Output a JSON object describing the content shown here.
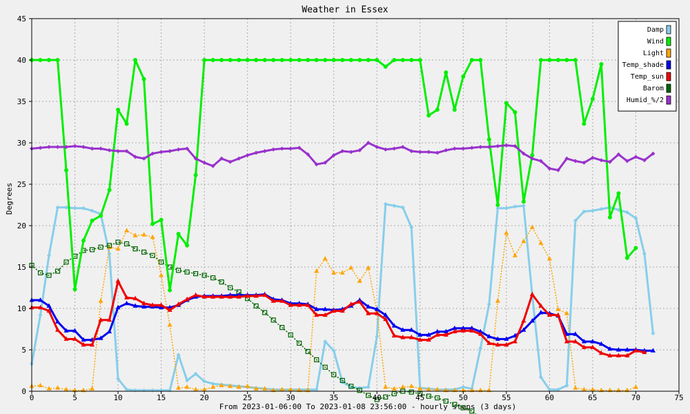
{
  "chart_data": {
    "type": "line",
    "title": "Weather in Essex",
    "xlabel": "From 2023-01-06:00 To 2023-01-08 23:56:00 - hourly steps (3 days)",
    "ylabel": "Degrees",
    "xlim": [
      0,
      75
    ],
    "ylim": [
      0,
      45
    ],
    "xticks": [
      0,
      5,
      10,
      15,
      20,
      25,
      30,
      35,
      40,
      45,
      50,
      55,
      60,
      65,
      70,
      75
    ],
    "yticks": [
      0,
      5,
      10,
      15,
      20,
      25,
      30,
      35,
      40,
      45
    ],
    "grid": true,
    "legend_position": "top-right",
    "series": [
      {
        "name": "Damp",
        "color": "#87ceeb",
        "marker": "diamond",
        "dash": "solid",
        "values": [
          3.3,
          9.2,
          16.4,
          22.2,
          22.2,
          22.1,
          22.1,
          21.8,
          21.4,
          16.6,
          1.5,
          0.2,
          0.1,
          0.1,
          0.1,
          0.1,
          0.1,
          4.4,
          1.3,
          2.1,
          1.2,
          0.9,
          0.8,
          0.7,
          0.6,
          0.5,
          0.4,
          0.3,
          0.2,
          0.2,
          0.2,
          0.2,
          0.2,
          0.2,
          6.0,
          4.9,
          1.1,
          0.5,
          0.4,
          0.5,
          6.6,
          22.6,
          22.4,
          22.2,
          19.8,
          0.4,
          0.3,
          0.2,
          0.2,
          0.2,
          0.5,
          0.3,
          5.2,
          10.5,
          22.1,
          22.1,
          22.3,
          22.4,
          11.6,
          1.7,
          0.2,
          0.2,
          0.7,
          20.6,
          21.7,
          21.8,
          22.0,
          22.2,
          21.9,
          21.6,
          20.9,
          16.6,
          7.0
        ]
      },
      {
        "name": "Wind",
        "color": "#00ee00",
        "marker": "circle",
        "dash": "solid",
        "values": [
          40,
          40,
          40,
          40,
          26.7,
          12.3,
          18.2,
          20.6,
          21.2,
          24.3,
          34,
          32.3,
          40,
          37.7,
          20.2,
          20.7,
          12.2,
          19,
          17.6,
          26.1,
          40,
          40,
          40,
          40,
          40,
          40,
          40,
          40,
          40,
          40,
          40,
          40,
          40,
          40,
          40,
          40,
          40,
          40,
          40,
          40,
          40,
          39.2,
          40,
          40,
          40,
          40,
          33.3,
          34,
          38.5,
          34,
          38,
          40,
          40,
          30.4,
          22.5,
          34.8,
          33.7,
          22.9,
          28.5,
          40,
          40,
          40,
          40,
          40,
          32.3,
          35.3,
          39.5,
          21,
          23.9,
          16.1,
          17.3
        ]
      },
      {
        "name": "Light",
        "color": "#ffa500",
        "marker": "triangle",
        "dash": "dotted",
        "values": [
          0.6,
          0.7,
          0.3,
          0.4,
          0.2,
          0.1,
          0.1,
          0.3,
          10.9,
          17.4,
          17.2,
          19.4,
          18.8,
          18.9,
          18.6,
          14,
          8,
          0.4,
          0.5,
          0.2,
          0.2,
          0.5,
          0.7,
          0.6,
          0.5,
          0.6,
          0.3,
          0.3,
          0.1,
          0.2,
          0.2,
          0.1,
          0.1,
          14.5,
          16,
          14.3,
          14.3,
          14.9,
          13.3,
          14.9,
          9.6,
          0.5,
          0.3,
          0.5,
          0.6,
          0.3,
          0.2,
          0.2,
          0.1,
          0.1,
          0.1,
          0.1,
          0.1,
          0.1,
          10.9,
          19.1,
          16.4,
          18.1,
          19.8,
          17.9,
          16,
          9.9,
          9.4,
          0.4,
          0.2,
          0.2,
          0.1,
          0.1,
          0.1,
          0.1,
          0.5
        ]
      },
      {
        "name": "Temp_shade",
        "color": "#0000ee",
        "marker": "triangle",
        "dash": "solid",
        "values": [
          11,
          11,
          10.3,
          8.4,
          7.3,
          7.3,
          6.2,
          6.2,
          6.4,
          7.2,
          10.1,
          10.6,
          10.3,
          10.2,
          10.2,
          10.1,
          10.1,
          10.4,
          11,
          11.4,
          11.5,
          11.5,
          11.5,
          11.6,
          11.6,
          11.6,
          11.6,
          11.7,
          11.1,
          11,
          10.6,
          10.6,
          10.5,
          9.9,
          9.9,
          9.8,
          9.9,
          10.3,
          11.0,
          10.2,
          9.9,
          9.2,
          7.9,
          7.4,
          7.4,
          6.8,
          6.8,
          7.2,
          7.2,
          7.6,
          7.6,
          7.6,
          7.2,
          6.6,
          6.3,
          6.3,
          6.7,
          7.4,
          8.5,
          9.5,
          9.4,
          9.1,
          6.9,
          6.9,
          6.0,
          6.0,
          5.7,
          5.1,
          5.0,
          5.0,
          5.0,
          4.9,
          4.9
        ]
      },
      {
        "name": "Temp_sun",
        "color": "#ee0000",
        "marker": "triangle",
        "dash": "solid",
        "values": [
          10.1,
          10.1,
          9.7,
          7.4,
          6.3,
          6.3,
          5.6,
          5.6,
          8.6,
          8.6,
          13.3,
          11.3,
          11.2,
          10.6,
          10.4,
          10.4,
          9.8,
          10.5,
          11.1,
          11.6,
          11.4,
          11.4,
          11.4,
          11.4,
          11.4,
          11.5,
          11.5,
          11.6,
          10.9,
          10.9,
          10.4,
          10.4,
          10.4,
          9.2,
          9.2,
          9.7,
          9.7,
          10.5,
          10.8,
          9.4,
          9.4,
          8.7,
          6.7,
          6.5,
          6.5,
          6.2,
          6.2,
          6.8,
          6.8,
          7.2,
          7.3,
          7.3,
          6.9,
          5.8,
          5.6,
          5.6,
          6.0,
          8.5,
          11.7,
          10.3,
          9.2,
          9.2,
          6.0,
          6.0,
          5.3,
          5.3,
          4.6,
          4.3,
          4.3,
          4.3,
          4.9,
          4.7
        ]
      },
      {
        "name": "Barom",
        "color": "#006400",
        "marker": "square",
        "dash": "dotted",
        "values": [
          15.2,
          14.3,
          14,
          14.5,
          15.6,
          16.3,
          17,
          17.1,
          17.4,
          17.6,
          18,
          17.8,
          17.2,
          16.8,
          16.4,
          15.6,
          15,
          14.6,
          14.4,
          14.2,
          14,
          13.7,
          13.2,
          12.5,
          12,
          11.2,
          10.3,
          9.5,
          8.6,
          7.7,
          6.8,
          5.8,
          4.8,
          3.8,
          2.9,
          2.0,
          1.3,
          0.6,
          0.1,
          -0.5,
          -1.0,
          -0.7,
          -0.3,
          0,
          -0.1,
          -0.3,
          -0.6,
          -0.8,
          -1.2,
          -1.6,
          -2.0,
          -2.4,
          -3.2
        ]
      },
      {
        "name": "Humid_%/2",
        "color": "#9932cc",
        "marker": "diamond",
        "dash": "solid",
        "values": [
          29.3,
          29.4,
          29.5,
          29.5,
          29.5,
          29.6,
          29.5,
          29.3,
          29.3,
          29.1,
          29,
          29,
          28.3,
          28.1,
          28.7,
          28.9,
          29,
          29.2,
          29.3,
          28.1,
          27.6,
          27.2,
          28.1,
          27.7,
          28.1,
          28.5,
          28.8,
          29,
          29.2,
          29.3,
          29.3,
          29.4,
          28.6,
          27.4,
          27.6,
          28.5,
          29,
          28.9,
          29.1,
          30,
          29.5,
          29.2,
          29.3,
          29.5,
          29,
          28.9,
          28.9,
          28.8,
          29.1,
          29.3,
          29.3,
          29.4,
          29.5,
          29.5,
          29.6,
          29.7,
          29.6,
          28.7,
          28.1,
          27.8,
          26.9,
          26.7,
          28.1,
          27.8,
          27.6,
          28.2,
          27.9,
          27.7,
          28.6,
          27.8,
          28.3,
          27.9,
          28.7
        ]
      }
    ]
  }
}
